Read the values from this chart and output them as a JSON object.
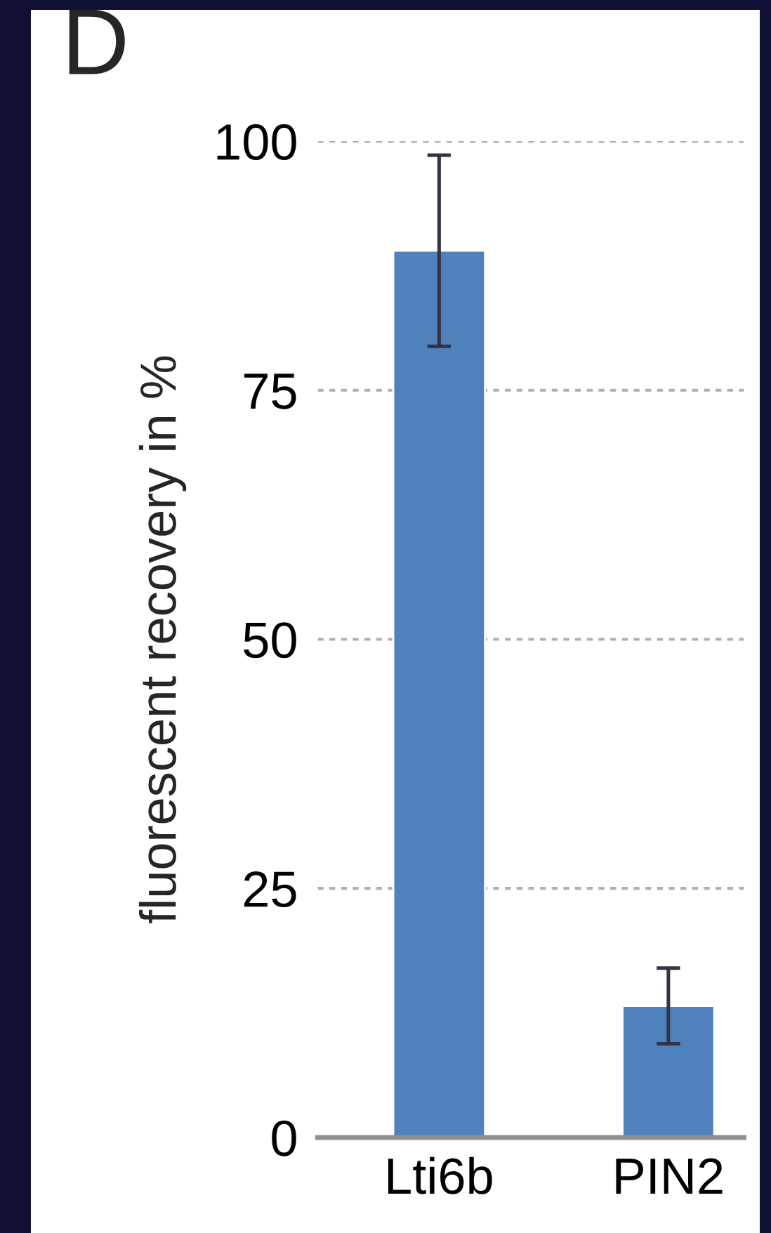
{
  "chart_data": {
    "type": "bar",
    "title": "D",
    "ylabel": "fluorescent recovery in %",
    "categories": [
      "Lti6b",
      "PIN2"
    ],
    "values": [
      89,
      13.2
    ],
    "errors": [
      9.6,
      3.8
    ],
    "color": "#4f81bd",
    "ylim": [
      0,
      100
    ],
    "yticks": [
      0,
      25,
      50,
      75,
      100
    ],
    "grid": "y"
  }
}
